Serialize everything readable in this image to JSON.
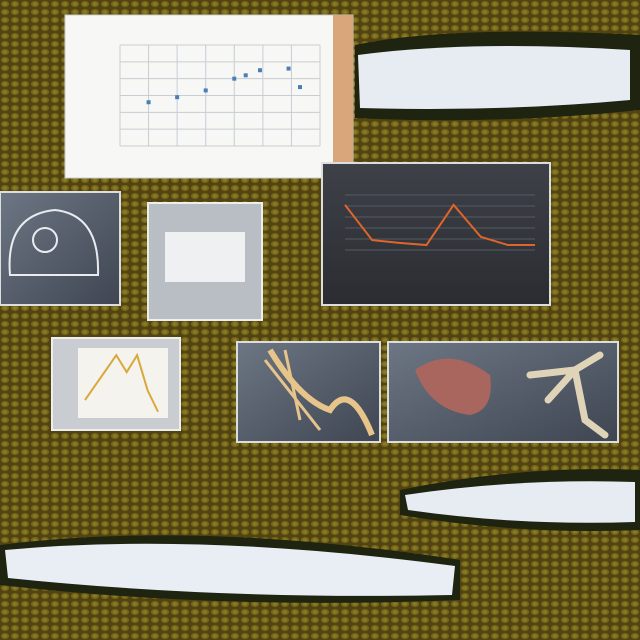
{
  "charts": [
    {
      "type": "scatter",
      "color": "#4a7fb5",
      "grid": true,
      "x": [
        1,
        2,
        3,
        4,
        4.4,
        4.9,
        5.9,
        6.3
      ],
      "values": [
        2.6,
        2.9,
        3.3,
        4.0,
        4.2,
        4.5,
        4.6,
        3.5
      ],
      "xlim": [
        0,
        7
      ],
      "ylim": [
        0,
        6
      ],
      "xticks": [
        0,
        1,
        2,
        3,
        4,
        5,
        6,
        7
      ],
      "yticks": [
        0,
        1,
        2,
        3,
        4,
        5,
        6
      ]
    },
    {
      "type": "line",
      "color": "#e0652a",
      "grid": true,
      "values": [
        8.2,
        1.8,
        1.3,
        0.9,
        8.2,
        2.4,
        0.9,
        0.9
      ],
      "ylim": [
        0,
        10
      ],
      "yticks": [
        0,
        2,
        4,
        6,
        8,
        10
      ]
    },
    {
      "type": "line",
      "color": "#d9a83a",
      "grid": false,
      "values": [
        2.3,
        4.6,
        6.9,
        9.2,
        6.6,
        9.2,
        3.8,
        0.5
      ],
      "ylim": [
        0,
        10
      ],
      "yticks": []
    }
  ]
}
